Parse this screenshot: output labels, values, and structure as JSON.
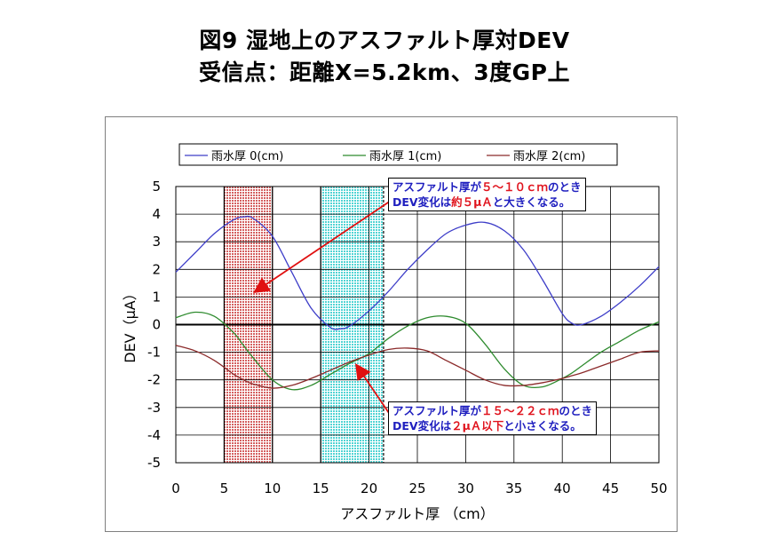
{
  "title_line1": "図9  湿地上のアスファルト厚対DEV",
  "title_line2": "受信点：距離X=5.2km、3度GP上",
  "chart_data": {
    "type": "line",
    "xlabel": "アスファルト厚 （cm）",
    "ylabel": "DEV（μA）",
    "xlim": [
      0,
      50
    ],
    "ylim": [
      -5,
      5
    ],
    "xticks": [
      "0",
      "5",
      "10",
      "15",
      "20",
      "25",
      "30",
      "35",
      "40",
      "45",
      "50"
    ],
    "yticks": [
      "5",
      "4",
      "3",
      "2",
      "1",
      "0",
      "-1",
      "-2",
      "-3",
      "-4",
      "-5"
    ],
    "grid": true,
    "legend_position": "top",
    "x": [
      0,
      2,
      4,
      6,
      7,
      8,
      10,
      12,
      14,
      16,
      17,
      18,
      20,
      22,
      24,
      26,
      28,
      30,
      32,
      34,
      36,
      38,
      40,
      41,
      42,
      44,
      46,
      48,
      50
    ],
    "series": [
      {
        "name": "雨水厚 0(cm)",
        "color": "#3d3dc8",
        "values": [
          1.9,
          2.6,
          3.3,
          3.8,
          3.9,
          3.85,
          3.2,
          1.9,
          0.6,
          -0.1,
          -0.15,
          -0.05,
          0.5,
          1.2,
          2.0,
          2.7,
          3.3,
          3.6,
          3.7,
          3.4,
          2.7,
          1.6,
          0.4,
          0.05,
          0.0,
          0.3,
          0.8,
          1.4,
          2.1
        ]
      },
      {
        "name": "雨水厚 1(cm)",
        "color": "#2e8b2e",
        "values": [
          0.25,
          0.45,
          0.3,
          -0.3,
          -0.75,
          -1.2,
          -2.0,
          -2.35,
          -2.2,
          -1.8,
          -1.6,
          -1.4,
          -1.05,
          -0.5,
          -0.05,
          0.25,
          0.3,
          0.05,
          -0.7,
          -1.6,
          -2.2,
          -2.25,
          -1.95,
          -1.75,
          -1.5,
          -1.0,
          -0.6,
          -0.2,
          0.1
        ]
      },
      {
        "name": "雨水厚 2(cm)",
        "color": "#8b2a2a",
        "values": [
          -0.75,
          -0.95,
          -1.3,
          -1.8,
          -2.0,
          -2.15,
          -2.3,
          -2.2,
          -1.95,
          -1.65,
          -1.5,
          -1.35,
          -1.1,
          -0.9,
          -0.85,
          -0.95,
          -1.3,
          -1.65,
          -2.0,
          -2.2,
          -2.2,
          -2.1,
          -1.95,
          -1.85,
          -1.75,
          -1.5,
          -1.25,
          -1.0,
          -0.95
        ]
      }
    ],
    "bands": [
      {
        "from": 5,
        "to": 10,
        "fill": "#e8a0a0"
      },
      {
        "from": 15,
        "to": 21.5,
        "fill": "#a8f0f0"
      }
    ],
    "annotations": [
      {
        "line1_blue": "アスファルト厚が",
        "line1_red": "５～１０ｃｍ",
        "line1_blue2": "のとき",
        "line2_blue": "DEV変化は",
        "line2_red": "約５μＡ",
        "line2_blue2": "と大きくなる。"
      },
      {
        "line1_blue": "アスファルト厚が",
        "line1_red": "１５～２２ｃｍ",
        "line1_blue2": "のとき",
        "line2_blue": "DEV変化は",
        "line2_red": "２μＡ以下",
        "line2_blue2": "と小さくなる。"
      }
    ]
  }
}
